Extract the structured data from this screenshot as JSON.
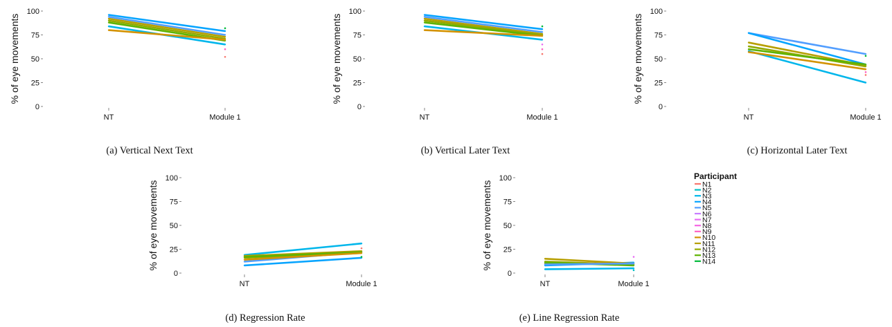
{
  "figure": {
    "colors": {
      "N1": "#F8766D",
      "N2": "#00BFC4",
      "N3": "#00B6EB",
      "N4": "#06A4FF",
      "N5": "#529EFF",
      "N6": "#C77CFF",
      "N7": "#E76BF3",
      "N8": "#F564E3",
      "N9": "#FF61C3",
      "N10": "#D39200",
      "N11": "#B79F00",
      "N12": "#93AA00",
      "N13": "#5EB300",
      "N14": "#00BA38"
    },
    "legend": {
      "title": "Participant",
      "entries": [
        "N1",
        "N2",
        "N3",
        "N4",
        "N5",
        "N6",
        "N7",
        "N8",
        "N9",
        "N10",
        "N11",
        "N12",
        "N13",
        "N14"
      ]
    }
  },
  "chart_data": [
    {
      "id": "a",
      "type": "line",
      "caption": "(a) Vertical Next Text",
      "ylabel": "% of eye movements",
      "categories": [
        "NT",
        "Module 1"
      ],
      "yticks": [
        0,
        25,
        50,
        75,
        100
      ],
      "ylim": [
        0,
        100
      ],
      "grid": false,
      "series": [
        {
          "name": "N4",
          "values": [
            96,
            79
          ]
        },
        {
          "name": "N5",
          "values": [
            94,
            75
          ]
        },
        {
          "name": "N3",
          "values": [
            84,
            65
          ]
        },
        {
          "name": "N11",
          "values": [
            92,
            73
          ]
        },
        {
          "name": "N12",
          "values": [
            90,
            71
          ]
        },
        {
          "name": "N13",
          "values": [
            88,
            69
          ]
        },
        {
          "name": "N10",
          "values": [
            80,
            70
          ]
        }
      ],
      "points": [
        {
          "name": "N1",
          "x": "Module 1",
          "y": 52
        },
        {
          "name": "N9",
          "x": "Module 1",
          "y": 60
        },
        {
          "name": "N14",
          "x": "Module 1",
          "y": 82
        }
      ]
    },
    {
      "id": "b",
      "type": "line",
      "caption": "(b) Vertical Later Text",
      "ylabel": "% of eye movements",
      "categories": [
        "NT",
        "Module 1"
      ],
      "yticks": [
        0,
        25,
        50,
        75,
        100
      ],
      "ylim": [
        0,
        100
      ],
      "grid": false,
      "series": [
        {
          "name": "N4",
          "values": [
            96,
            81
          ]
        },
        {
          "name": "N5",
          "values": [
            94,
            78
          ]
        },
        {
          "name": "N3",
          "values": [
            84,
            70
          ]
        },
        {
          "name": "N11",
          "values": [
            92,
            76
          ]
        },
        {
          "name": "N12",
          "values": [
            90,
            75
          ]
        },
        {
          "name": "N13",
          "values": [
            88,
            74
          ]
        },
        {
          "name": "N10",
          "values": [
            80,
            74
          ]
        }
      ],
      "points": [
        {
          "name": "N1",
          "x": "Module 1",
          "y": 55
        },
        {
          "name": "N9",
          "x": "Module 1",
          "y": 60
        },
        {
          "name": "N7",
          "x": "Module 1",
          "y": 65
        },
        {
          "name": "N14",
          "x": "Module 1",
          "y": 84
        }
      ]
    },
    {
      "id": "c",
      "type": "line",
      "caption": "(c) Horizontal Later Text",
      "ylabel": "% of eye movements",
      "categories": [
        "NT",
        "Module 1"
      ],
      "yticks": [
        0,
        25,
        50,
        75,
        100
      ],
      "ylim": [
        0,
        100
      ],
      "grid": false,
      "series": [
        {
          "name": "N5",
          "values": [
            77,
            55
          ]
        },
        {
          "name": "N4",
          "values": [
            77,
            44
          ]
        },
        {
          "name": "N3",
          "values": [
            58,
            25
          ]
        },
        {
          "name": "N11",
          "values": [
            67,
            43
          ]
        },
        {
          "name": "N12",
          "values": [
            63,
            42
          ]
        },
        {
          "name": "N13",
          "values": [
            60,
            44
          ]
        },
        {
          "name": "N10",
          "values": [
            57,
            39
          ]
        }
      ],
      "points": [
        {
          "name": "N1",
          "x": "Module 1",
          "y": 33
        },
        {
          "name": "N9",
          "x": "Module 1",
          "y": 36
        },
        {
          "name": "N14",
          "x": "Module 1",
          "y": 53
        }
      ]
    },
    {
      "id": "d",
      "type": "line",
      "caption": "(d) Regression Rate",
      "ylabel": "% of eye movements",
      "categories": [
        "NT",
        "Module 1"
      ],
      "yticks": [
        0,
        25,
        50,
        75,
        100
      ],
      "ylim": [
        0,
        100
      ],
      "grid": false,
      "series": [
        {
          "name": "N3",
          "values": [
            19,
            31
          ]
        },
        {
          "name": "N4",
          "values": [
            8,
            16
          ]
        },
        {
          "name": "N5",
          "values": [
            12,
            22
          ]
        },
        {
          "name": "N11",
          "values": [
            18,
            23
          ]
        },
        {
          "name": "N12",
          "values": [
            16,
            21
          ]
        },
        {
          "name": "N13",
          "values": [
            17,
            22
          ]
        },
        {
          "name": "N10",
          "values": [
            14,
            21
          ]
        }
      ],
      "points": [
        {
          "name": "N1",
          "x": "Module 1",
          "y": 26
        },
        {
          "name": "N14",
          "x": "Module 1",
          "y": 17
        }
      ]
    },
    {
      "id": "e",
      "type": "line",
      "caption": "(e) Line Regression Rate",
      "ylabel": "% of eye movements",
      "categories": [
        "NT",
        "Module 1"
      ],
      "yticks": [
        0,
        25,
        50,
        75,
        100
      ],
      "ylim": [
        0,
        100
      ],
      "grid": false,
      "series": [
        {
          "name": "N3",
          "values": [
            4,
            5
          ]
        },
        {
          "name": "N4",
          "values": [
            8,
            11
          ]
        },
        {
          "name": "N11",
          "values": [
            15,
            10
          ]
        },
        {
          "name": "N12",
          "values": [
            12,
            9
          ]
        },
        {
          "name": "N10",
          "values": [
            10,
            10
          ]
        },
        {
          "name": "N13",
          "values": [
            11,
            8
          ]
        },
        {
          "name": "N5",
          "values": [
            9,
            10
          ]
        }
      ],
      "points": [
        {
          "name": "N7",
          "x": "Module 1",
          "y": 17
        },
        {
          "name": "N2",
          "x": "Module 1",
          "y": 3
        }
      ]
    }
  ]
}
